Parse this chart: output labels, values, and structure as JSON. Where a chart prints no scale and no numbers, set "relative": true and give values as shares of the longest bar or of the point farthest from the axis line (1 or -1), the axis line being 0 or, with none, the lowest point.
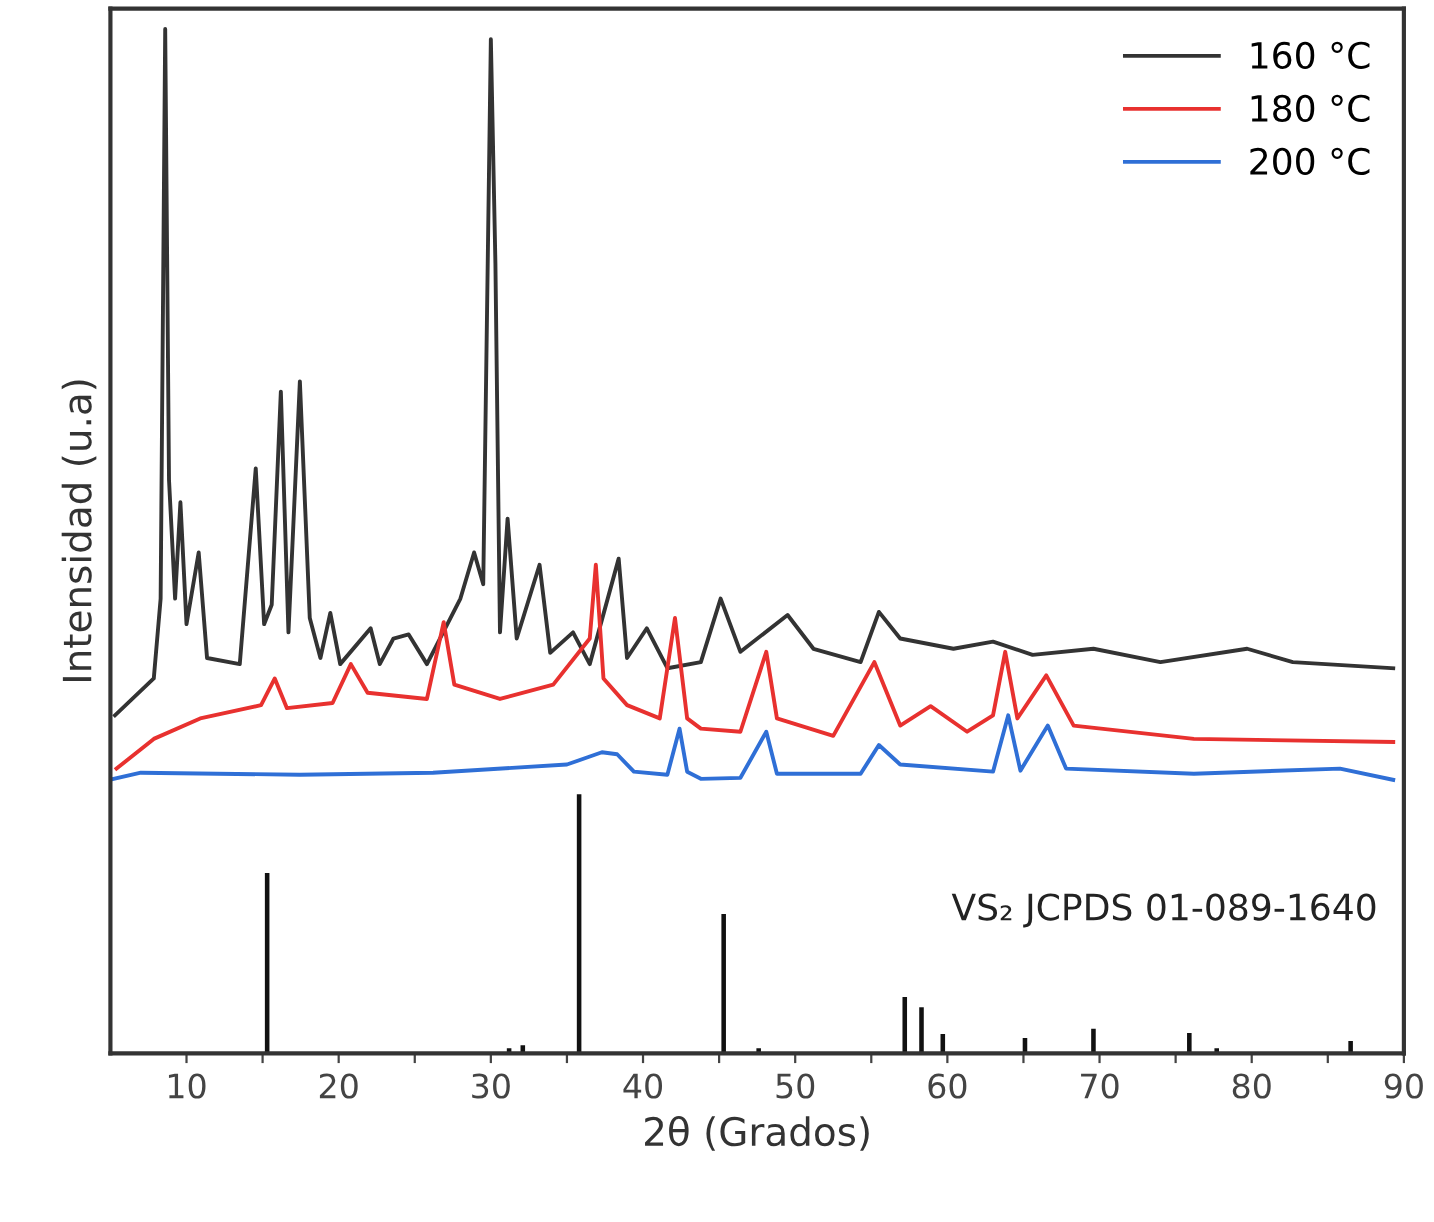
{
  "chart_data": {
    "type": "line",
    "relative": true,
    "xlabel": "2θ (Grados)",
    "ylabel": "Intensidad (u.a)",
    "xlim": [
      5,
      90
    ],
    "xticks": [
      10,
      {
        "value": 15,
        "label": null
      },
      20,
      {
        "value": 25,
        "label": null
      },
      30,
      {
        "value": 35,
        "label": null
      },
      40,
      {
        "value": 45,
        "label": null
      },
      50,
      {
        "value": 55,
        "label": null
      },
      60,
      {
        "value": 65,
        "label": null
      },
      70,
      {
        "value": 75,
        "label": null
      },
      80,
      {
        "value": 85,
        "label": null
      },
      90
    ],
    "legend": "top right",
    "grid": false,
    "annotations": [
      "VS₂ JCPDS 01-089-1640"
    ],
    "series": [
      {
        "name": "160 °C",
        "color": "#333333",
        "x": [
          5.3,
          7.85,
          8.3,
          8.6,
          8.85,
          9.25,
          9.6,
          10.0,
          10.8,
          11.35,
          13.5,
          14.55,
          15.1,
          15.6,
          16.2,
          16.7,
          17.45,
          18.1,
          18.8,
          19.45,
          20.1,
          22.1,
          22.7,
          23.6,
          24.6,
          25.8,
          28.0,
          28.9,
          29.5,
          30.0,
          30.3,
          30.6,
          31.1,
          31.7,
          33.2,
          33.9,
          35.4,
          36.5,
          38.4,
          38.95,
          40.25,
          41.6,
          43.8,
          45.1,
          46.4,
          49.5,
          51.2,
          54.3,
          55.5,
          56.9,
          60.4,
          63.0,
          65.6,
          69.6,
          74.0,
          79.7,
          82.7,
          89.3
        ],
        "values": [
          0.33,
          0.366,
          0.444,
          1.0,
          0.56,
          0.444,
          0.538,
          0.419,
          0.489,
          0.386,
          0.38,
          0.571,
          0.419,
          0.438,
          0.646,
          0.411,
          0.656,
          0.425,
          0.386,
          0.43,
          0.38,
          0.415,
          0.38,
          0.405,
          0.409,
          0.38,
          0.444,
          0.489,
          0.458,
          0.99,
          0.771,
          0.411,
          0.522,
          0.405,
          0.477,
          0.391,
          0.411,
          0.38,
          0.483,
          0.386,
          0.415,
          0.376,
          0.382,
          0.444,
          0.392,
          0.428,
          0.395,
          0.382,
          0.431,
          0.405,
          0.395,
          0.402,
          0.389,
          0.395,
          0.382,
          0.395,
          0.382,
          0.376
        ]
      },
      {
        "name": "180 °C",
        "color": "#e8312f",
        "x": [
          5.4,
          7.85,
          10.9,
          14.9,
          15.8,
          16.6,
          19.6,
          20.8,
          21.9,
          25.8,
          26.9,
          27.6,
          30.6,
          34.1,
          36.5,
          36.9,
          37.4,
          38.95,
          41.1,
          42.1,
          42.9,
          43.8,
          46.4,
          48.1,
          48.8,
          52.5,
          55.2,
          56.9,
          58.9,
          61.3,
          63.0,
          63.8,
          64.6,
          66.5,
          68.3,
          76.2,
          89.3
        ],
        "values": [
          0.278,
          0.307,
          0.327,
          0.34,
          0.366,
          0.337,
          0.342,
          0.38,
          0.352,
          0.346,
          0.421,
          0.36,
          0.346,
          0.36,
          0.405,
          0.477,
          0.366,
          0.34,
          0.327,
          0.425,
          0.327,
          0.317,
          0.314,
          0.392,
          0.327,
          0.31,
          0.382,
          0.32,
          0.339,
          0.314,
          0.33,
          0.392,
          0.327,
          0.369,
          0.32,
          0.307,
          0.304
        ]
      },
      {
        "name": "200 °C",
        "color": "#2f6fd6",
        "x": [
          5.2,
          7.0,
          17.45,
          26.2,
          35.0,
          37.3,
          38.3,
          39.4,
          41.6,
          42.4,
          42.9,
          43.8,
          46.4,
          48.1,
          48.8,
          54.3,
          55.5,
          56.9,
          63.0,
          64.0,
          64.8,
          66.6,
          67.8,
          76.2,
          85.8,
          89.3
        ],
        "values": [
          0.268,
          0.274,
          0.272,
          0.274,
          0.282,
          0.294,
          0.292,
          0.275,
          0.272,
          0.317,
          0.275,
          0.268,
          0.269,
          0.314,
          0.273,
          0.273,
          0.301,
          0.282,
          0.275,
          0.33,
          0.276,
          0.32,
          0.278,
          0.273,
          0.278,
          0.267
        ]
      },
      {
        "color": "#111111",
        "type": "bar",
        "x": [
          15.3,
          31.2,
          32.1,
          35.8,
          45.3,
          47.6,
          57.2,
          58.3,
          59.7,
          65.1,
          69.6,
          75.9,
          77.7,
          86.5
        ],
        "values": [
          0.176,
          0.005,
          0.008,
          0.253,
          0.136,
          0.005,
          0.055,
          0.045,
          0.019,
          0.015,
          0.024,
          0.02,
          0.005,
          0.012
        ]
      }
    ]
  }
}
